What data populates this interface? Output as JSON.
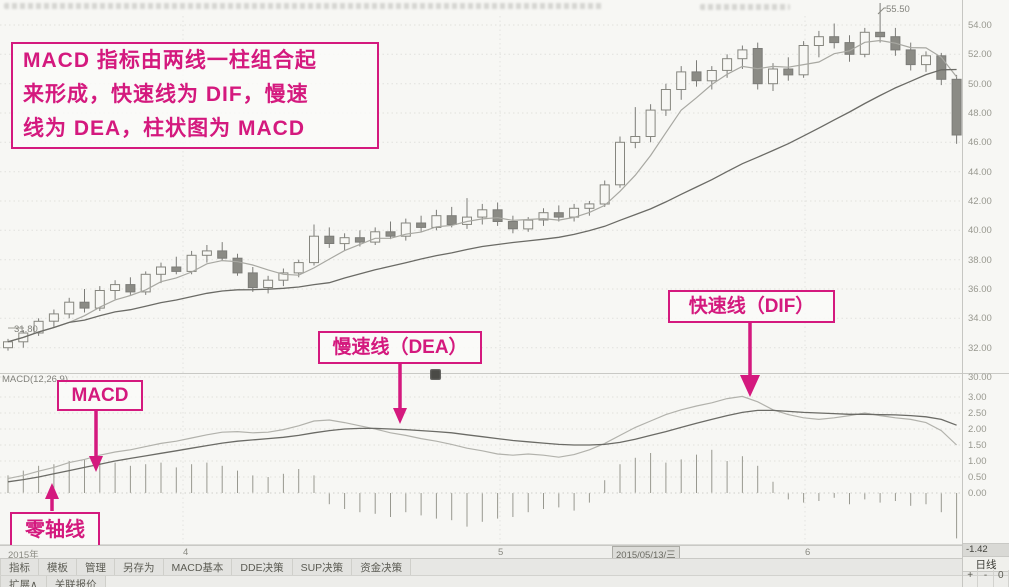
{
  "accent_color": "#d4197e",
  "annotations": {
    "intro": {
      "lines": [
        "MACD 指标由两线一柱组合起",
        "来形成，快速线为 DIF，慢速",
        "线为 DEA，柱状图为 MACD"
      ]
    },
    "macd_box": {
      "label": "MACD"
    },
    "dea_box": {
      "label": "慢速线（DEA）"
    },
    "dif_box": {
      "label": "快速线（DIF）"
    },
    "zero_box": {
      "label": "零轴线"
    }
  },
  "chart_data": {
    "type": "candlestick",
    "title": "",
    "price_axis": {
      "ticks": [
        "54.00",
        "52.00",
        "50.00",
        "48.00",
        "46.00",
        "44.00",
        "42.00",
        "40.00",
        "38.00",
        "36.00",
        "34.00",
        "32.00",
        "30.00"
      ],
      "high_label": "55.50",
      "low_label": "31.80",
      "range": [
        30.0,
        55.5
      ]
    },
    "candles_ohlc": [
      [
        32.0,
        32.6,
        31.8,
        32.4
      ],
      [
        32.4,
        33.2,
        32.0,
        33.0
      ],
      [
        33.0,
        34.0,
        32.8,
        33.8
      ],
      [
        33.8,
        34.6,
        33.4,
        34.3
      ],
      [
        34.3,
        35.4,
        34.0,
        35.1
      ],
      [
        35.1,
        36.0,
        34.4,
        34.7
      ],
      [
        34.7,
        36.2,
        34.5,
        35.9
      ],
      [
        35.9,
        36.6,
        35.3,
        36.3
      ],
      [
        36.3,
        36.8,
        35.6,
        35.8
      ],
      [
        35.8,
        37.2,
        35.6,
        37.0
      ],
      [
        37.0,
        37.8,
        36.4,
        37.5
      ],
      [
        37.5,
        38.2,
        37.0,
        37.2
      ],
      [
        37.2,
        38.6,
        37.0,
        38.3
      ],
      [
        38.3,
        39.0,
        37.8,
        38.6
      ],
      [
        38.6,
        39.2,
        37.9,
        38.1
      ],
      [
        38.1,
        38.4,
        36.9,
        37.1
      ],
      [
        37.1,
        37.5,
        35.8,
        36.1
      ],
      [
        36.1,
        36.9,
        35.7,
        36.6
      ],
      [
        36.6,
        37.4,
        36.2,
        37.1
      ],
      [
        37.1,
        38.0,
        36.8,
        37.8
      ],
      [
        37.8,
        40.4,
        37.6,
        39.6
      ],
      [
        39.6,
        40.2,
        38.8,
        39.1
      ],
      [
        39.1,
        39.8,
        38.6,
        39.5
      ],
      [
        39.5,
        40.0,
        38.9,
        39.2
      ],
      [
        39.2,
        40.2,
        39.0,
        39.9
      ],
      [
        39.9,
        40.6,
        39.4,
        39.6
      ],
      [
        39.6,
        40.8,
        39.3,
        40.5
      ],
      [
        40.5,
        41.0,
        39.9,
        40.2
      ],
      [
        40.2,
        41.4,
        40.0,
        41.0
      ],
      [
        41.0,
        41.6,
        40.2,
        40.4
      ],
      [
        40.4,
        42.2,
        40.1,
        40.9
      ],
      [
        40.9,
        41.8,
        40.4,
        41.4
      ],
      [
        41.4,
        41.9,
        40.3,
        40.6
      ],
      [
        40.6,
        41.0,
        39.8,
        40.1
      ],
      [
        40.1,
        40.9,
        39.9,
        40.7
      ],
      [
        40.7,
        41.5,
        40.3,
        41.2
      ],
      [
        41.2,
        41.7,
        40.6,
        40.9
      ],
      [
        40.9,
        41.8,
        40.6,
        41.5
      ],
      [
        41.5,
        42.0,
        41.0,
        41.8
      ],
      [
        41.8,
        43.4,
        41.6,
        43.1
      ],
      [
        43.1,
        46.4,
        42.9,
        46.0
      ],
      [
        46.0,
        48.4,
        45.6,
        46.4
      ],
      [
        46.4,
        48.6,
        46.0,
        48.2
      ],
      [
        48.2,
        50.0,
        47.8,
        49.6
      ],
      [
        49.6,
        51.2,
        48.9,
        50.8
      ],
      [
        50.8,
        51.6,
        49.8,
        50.2
      ],
      [
        50.2,
        51.2,
        49.6,
        50.9
      ],
      [
        50.9,
        52.0,
        50.4,
        51.7
      ],
      [
        51.7,
        52.6,
        51.0,
        52.3
      ],
      [
        52.4,
        52.8,
        49.6,
        50.0
      ],
      [
        50.0,
        51.4,
        49.5,
        51.0
      ],
      [
        51.0,
        51.8,
        50.2,
        50.6
      ],
      [
        50.6,
        52.9,
        50.4,
        52.6
      ],
      [
        52.6,
        53.6,
        51.8,
        53.2
      ],
      [
        53.2,
        54.1,
        52.4,
        52.8
      ],
      [
        52.8,
        53.3,
        51.5,
        52.0
      ],
      [
        52.0,
        53.8,
        51.8,
        53.5
      ],
      [
        53.5,
        55.5,
        52.8,
        53.2
      ],
      [
        53.2,
        53.8,
        51.9,
        52.3
      ],
      [
        52.3,
        52.8,
        50.9,
        51.3
      ],
      [
        51.3,
        52.2,
        50.8,
        51.9
      ],
      [
        51.9,
        52.1,
        49.9,
        50.3
      ],
      [
        50.3,
        50.6,
        45.9,
        46.5
      ]
    ],
    "moving_averages": {
      "fast_window": 5,
      "slow_window": 22
    },
    "macd": {
      "label": "MACD(12,26,9)",
      "ticks": [
        "3.00",
        "2.50",
        "2.00",
        "1.50",
        "1.00",
        "0.50",
        "0.00"
      ],
      "last_value": "-1.42",
      "dif": [
        0.45,
        0.55,
        0.68,
        0.8,
        0.95,
        1.05,
        1.18,
        1.28,
        1.35,
        1.45,
        1.55,
        1.62,
        1.72,
        1.82,
        1.9,
        1.92,
        1.88,
        1.9,
        1.98,
        2.1,
        2.25,
        2.28,
        2.2,
        2.1,
        2.0,
        1.88,
        1.8,
        1.7,
        1.62,
        1.52,
        1.4,
        1.32,
        1.22,
        1.18,
        1.22,
        1.18,
        1.12,
        1.2,
        1.35,
        1.55,
        1.8,
        2.05,
        2.25,
        2.45,
        2.6,
        2.72,
        2.82,
        2.95,
        3.02,
        2.85,
        2.6,
        2.45,
        2.35,
        2.3,
        2.35,
        2.42,
        2.5,
        2.42,
        2.35,
        2.3,
        2.2,
        1.95,
        1.5
      ],
      "dea": [
        0.35,
        0.42,
        0.5,
        0.6,
        0.7,
        0.8,
        0.9,
        1.0,
        1.08,
        1.16,
        1.24,
        1.32,
        1.4,
        1.48,
        1.56,
        1.62,
        1.66,
        1.7,
        1.74,
        1.8,
        1.88,
        1.95,
        2.0,
        2.02,
        2.02,
        2.0,
        1.98,
        1.95,
        1.92,
        1.88,
        1.82,
        1.76,
        1.7,
        1.64,
        1.6,
        1.56,
        1.52,
        1.5,
        1.5,
        1.52,
        1.58,
        1.68,
        1.8,
        1.92,
        2.05,
        2.18,
        2.3,
        2.42,
        2.52,
        2.58,
        2.58,
        2.55,
        2.52,
        2.5,
        2.48,
        2.46,
        2.46,
        2.45,
        2.44,
        2.42,
        2.38,
        2.3,
        2.12
      ],
      "hist": [
        0.55,
        0.7,
        0.85,
        0.9,
        1.0,
        1.05,
        1.1,
        0.95,
        0.85,
        0.9,
        0.95,
        0.8,
        0.9,
        0.95,
        0.85,
        0.7,
        0.55,
        0.5,
        0.6,
        0.75,
        0.55,
        -0.35,
        -0.5,
        -0.6,
        -0.65,
        -0.75,
        -0.6,
        -0.7,
        -0.8,
        -0.85,
        -1.05,
        -0.9,
        -0.8,
        -0.75,
        -0.6,
        -0.5,
        -0.45,
        -0.55,
        -0.3,
        0.4,
        0.9,
        1.1,
        1.25,
        0.95,
        1.05,
        1.2,
        1.35,
        1.0,
        1.15,
        0.85,
        0.35,
        -0.2,
        -0.3,
        -0.25,
        -0.15,
        -0.35,
        -0.2,
        -0.3,
        -0.25,
        -0.4,
        -0.35,
        -0.6,
        -1.42
      ]
    }
  },
  "timeline": {
    "items": [
      "2015年",
      "4",
      "5",
      "2015/05/13/三",
      "6"
    ],
    "highlighted_index": 3
  },
  "toolbar": {
    "row1": [
      "指标",
      "模板",
      "管理",
      "另存为",
      "MACD基本",
      "DDE决策",
      "SUP决策",
      "资金决策"
    ],
    "row2": [
      "扩展∧",
      "关联报价"
    ]
  },
  "right_bar": {
    "last_value": "-1.42",
    "period": "日线",
    "zoom_buttons": [
      "+",
      "-",
      "0"
    ]
  }
}
